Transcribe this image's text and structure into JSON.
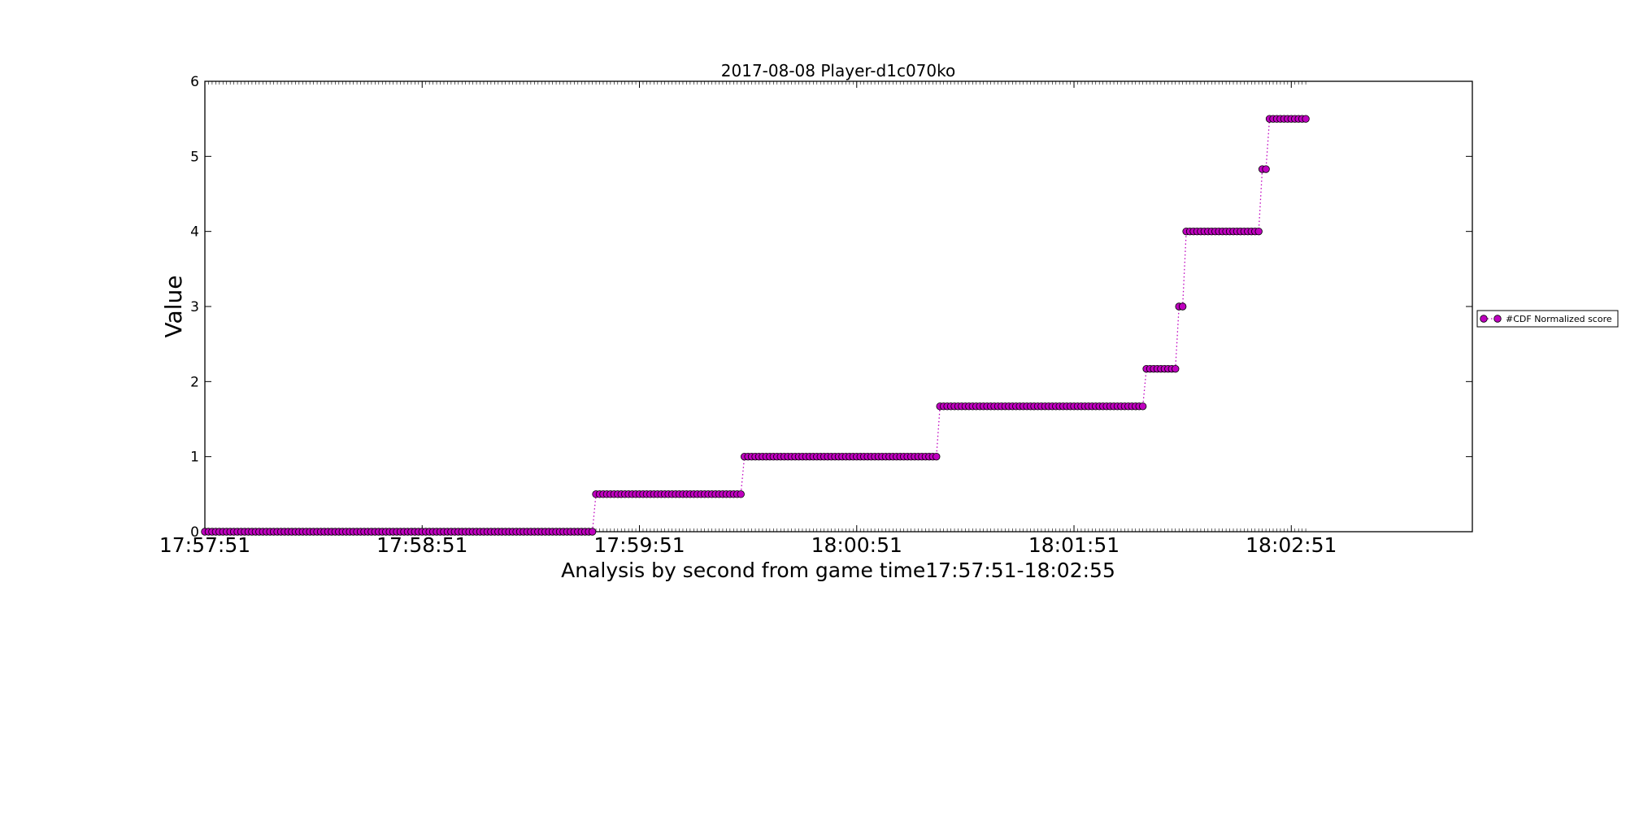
{
  "chart_data": {
    "type": "scatter",
    "title": "2017-08-08 Player-d1c070ko",
    "xlabel": "Analysis by second from game time17:57:51-18:02:55",
    "ylabel": "Value",
    "x_unit": "time",
    "x_start": "17:57:51",
    "x_end": "18:02:55",
    "xlim": [
      "17:57:51",
      "18:03:41"
    ],
    "ylim": [
      0,
      6
    ],
    "yticks": [
      0,
      1,
      2,
      3,
      4,
      5,
      6
    ],
    "xticks": [
      "17:57:51",
      "17:58:51",
      "17:59:51",
      "18:00:51",
      "18:01:51",
      "18:02:51"
    ],
    "grid": false,
    "legend_position": "right",
    "series": [
      {
        "name": "#CDF Normalized score",
        "color": "#bf00bf",
        "marker": "circle",
        "line_style": "dotted",
        "steps": [
          {
            "from": "17:57:51",
            "to": "17:59:38",
            "value": 0
          },
          {
            "from": "17:59:39",
            "to": "18:00:19",
            "value": 0.5
          },
          {
            "from": "18:00:20",
            "to": "18:01:13",
            "value": 1.0
          },
          {
            "from": "18:01:14",
            "to": "18:02:10",
            "value": 1.67
          },
          {
            "from": "18:02:11",
            "to": "18:02:19",
            "value": 2.17
          },
          {
            "from": "18:02:20",
            "to": "18:02:21",
            "value": 3.0
          },
          {
            "from": "18:02:22",
            "to": "18:02:42",
            "value": 4.0
          },
          {
            "from": "18:02:43",
            "to": "18:02:44",
            "value": 4.83
          },
          {
            "from": "18:02:45",
            "to": "18:02:55",
            "value": 5.5
          }
        ]
      }
    ]
  }
}
